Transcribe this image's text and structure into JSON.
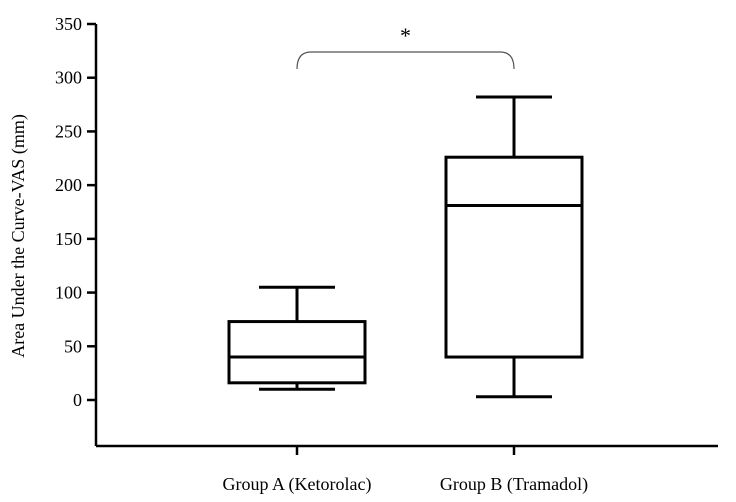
{
  "chart_data": {
    "type": "box",
    "ylabel": "Area Under the Curve-VAS (mm)",
    "xlabel": "",
    "ylim": [
      -45,
      350
    ],
    "yticks": [
      0,
      50,
      100,
      150,
      200,
      250,
      300,
      350
    ],
    "categories": [
      "Group A (Ketorolac)",
      "Group B (Tramadol)"
    ],
    "boxes": [
      {
        "category": "Group A (Ketorolac)",
        "min": 10,
        "q1": 16,
        "median": 40,
        "q3": 73,
        "max": 105
      },
      {
        "category": "Group B (Tramadol)",
        "min": 3,
        "q1": 40,
        "median": 181,
        "q3": 226,
        "max": 282
      }
    ],
    "annotations": [
      {
        "text": "*",
        "between": [
          "Group A (Ketorolac)",
          "Group B (Tramadol)"
        ]
      }
    ],
    "grid": false
  }
}
